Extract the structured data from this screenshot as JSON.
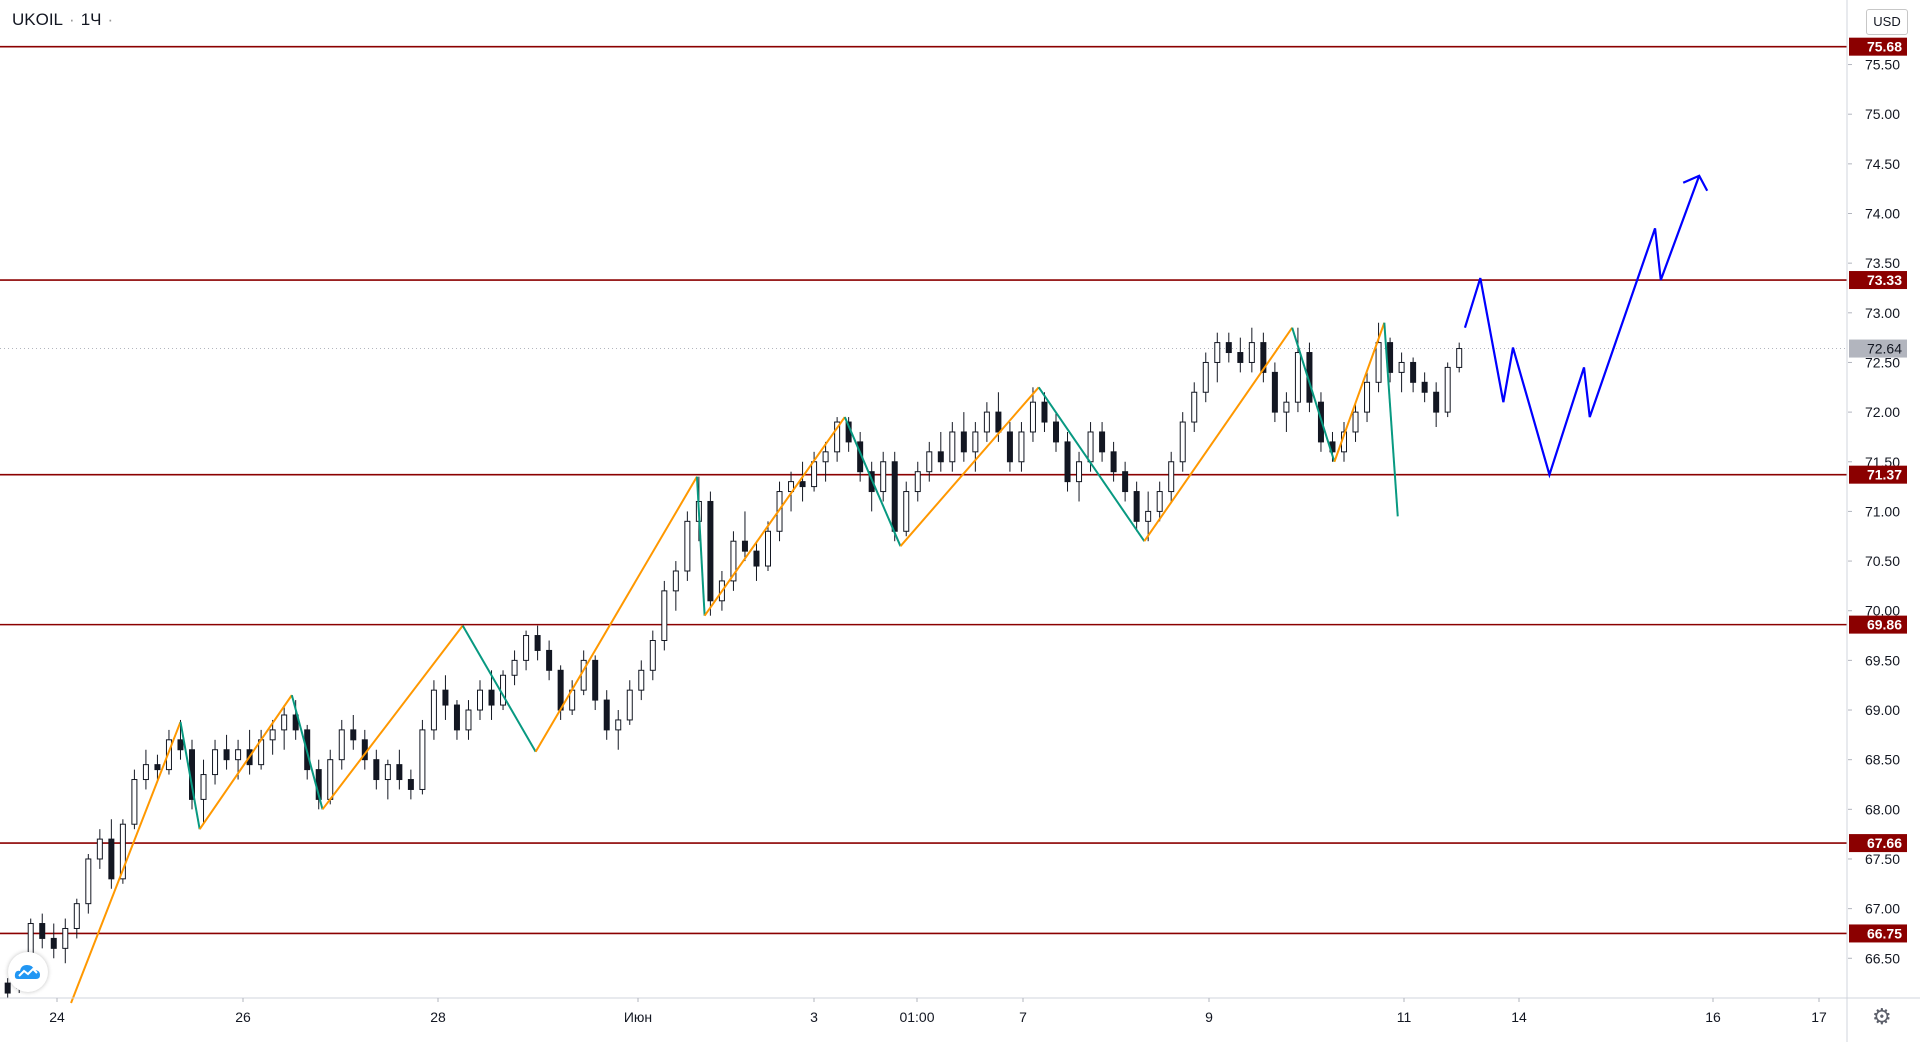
{
  "legend": {
    "symbol": "UKOIL",
    "interval": "1Ч"
  },
  "currency": "USD",
  "colors": {
    "level_line": "#8b0000",
    "level_tag_bg": "#8b0000",
    "zigzag_up": "#ff9800",
    "zigzag_down": "#089981",
    "forecast": "#0000ff",
    "candle": "#131722",
    "current_tag_bg": "#b2b5be"
  },
  "chart_data": {
    "type": "candlestick",
    "y_axis": {
      "range": [
        66.1,
        76.15
      ],
      "ticks": [
        "75.50",
        "75.00",
        "74.50",
        "74.00",
        "73.50",
        "73.00",
        "72.50",
        "72.00",
        "71.50",
        "71.00",
        "70.50",
        "70.00",
        "69.50",
        "69.00",
        "68.50",
        "68.00",
        "67.50",
        "67.00",
        "66.50"
      ]
    },
    "x_axis": {
      "tick_labels": [
        "24",
        "26",
        "28",
        "Июн",
        "3",
        "01:00",
        "7",
        "9",
        "11",
        "14",
        "16",
        "17"
      ]
    },
    "current_price": {
      "value": 72.64,
      "label": "72.64"
    },
    "horizontal_levels": [
      {
        "value": 75.68,
        "label": "75.68"
      },
      {
        "value": 73.33,
        "label": "73.33"
      },
      {
        "value": 71.37,
        "label": "71.37"
      },
      {
        "value": 69.86,
        "label": "69.86"
      },
      {
        "value": 67.66,
        "label": "67.66"
      },
      {
        "value": 66.75,
        "label": "66.75"
      }
    ],
    "zigzag": [
      [
        0.037,
        66.05
      ],
      [
        0.094,
        68.88
      ],
      [
        0.104,
        67.8
      ],
      [
        0.152,
        69.15
      ],
      [
        0.168,
        68.0
      ],
      [
        0.241,
        69.85
      ],
      [
        0.279,
        68.58
      ],
      [
        0.363,
        71.35
      ],
      [
        0.367,
        69.95
      ],
      [
        0.44,
        71.95
      ],
      [
        0.469,
        70.65
      ],
      [
        0.541,
        72.25
      ],
      [
        0.596,
        70.7
      ],
      [
        0.673,
        72.85
      ],
      [
        0.695,
        71.5
      ],
      [
        0.721,
        72.9
      ],
      [
        0.728,
        70.95
      ]
    ],
    "forecast_path": [
      [
        0.763,
        72.85
      ],
      [
        0.771,
        73.35
      ],
      [
        0.783,
        72.1
      ],
      [
        0.788,
        72.65
      ],
      [
        0.807,
        71.37
      ],
      [
        0.825,
        72.45
      ],
      [
        0.828,
        71.95
      ],
      [
        0.862,
        73.85
      ],
      [
        0.865,
        73.33
      ],
      [
        0.885,
        74.38
      ]
    ],
    "candles": [
      [
        0.004,
        66.25,
        66.3,
        66.1,
        66.15
      ],
      [
        0.01,
        66.2,
        66.35,
        66.15,
        66.3
      ],
      [
        0.016,
        66.4,
        66.9,
        66.3,
        66.85
      ],
      [
        0.022,
        66.85,
        66.95,
        66.6,
        66.7
      ],
      [
        0.028,
        66.7,
        66.85,
        66.5,
        66.6
      ],
      [
        0.034,
        66.6,
        66.9,
        66.45,
        66.8
      ],
      [
        0.04,
        66.8,
        67.1,
        66.7,
        67.05
      ],
      [
        0.046,
        67.05,
        67.55,
        66.95,
        67.5
      ],
      [
        0.052,
        67.5,
        67.8,
        67.4,
        67.7
      ],
      [
        0.058,
        67.7,
        67.9,
        67.2,
        67.3
      ],
      [
        0.064,
        67.3,
        67.9,
        67.25,
        67.85
      ],
      [
        0.07,
        67.85,
        68.4,
        67.8,
        68.3
      ],
      [
        0.076,
        68.3,
        68.6,
        68.2,
        68.45
      ],
      [
        0.082,
        68.45,
        68.55,
        68.3,
        68.4
      ],
      [
        0.088,
        68.4,
        68.8,
        68.35,
        68.7
      ],
      [
        0.094,
        68.7,
        68.9,
        68.5,
        68.6
      ],
      [
        0.1,
        68.6,
        68.7,
        68.0,
        68.1
      ],
      [
        0.106,
        68.1,
        68.5,
        67.85,
        68.35
      ],
      [
        0.112,
        68.35,
        68.7,
        68.25,
        68.6
      ],
      [
        0.118,
        68.6,
        68.75,
        68.4,
        68.5
      ],
      [
        0.124,
        68.5,
        68.7,
        68.3,
        68.6
      ],
      [
        0.13,
        68.6,
        68.8,
        68.35,
        68.45
      ],
      [
        0.136,
        68.45,
        68.8,
        68.4,
        68.7
      ],
      [
        0.142,
        68.7,
        68.9,
        68.55,
        68.8
      ],
      [
        0.148,
        68.8,
        69.05,
        68.6,
        68.95
      ],
      [
        0.154,
        68.95,
        69.1,
        68.7,
        68.8
      ],
      [
        0.16,
        68.8,
        68.85,
        68.3,
        68.4
      ],
      [
        0.166,
        68.4,
        68.5,
        68.0,
        68.1
      ],
      [
        0.172,
        68.1,
        68.6,
        68.05,
        68.5
      ],
      [
        0.178,
        68.5,
        68.9,
        68.4,
        68.8
      ],
      [
        0.184,
        68.8,
        68.95,
        68.6,
        68.7
      ],
      [
        0.19,
        68.7,
        68.8,
        68.4,
        68.5
      ],
      [
        0.196,
        68.5,
        68.6,
        68.2,
        68.3
      ],
      [
        0.202,
        68.3,
        68.5,
        68.1,
        68.45
      ],
      [
        0.208,
        68.45,
        68.6,
        68.2,
        68.3
      ],
      [
        0.214,
        68.3,
        68.4,
        68.1,
        68.2
      ],
      [
        0.22,
        68.2,
        68.9,
        68.15,
        68.8
      ],
      [
        0.226,
        68.8,
        69.3,
        68.7,
        69.2
      ],
      [
        0.232,
        69.2,
        69.35,
        68.9,
        69.05
      ],
      [
        0.238,
        69.05,
        69.1,
        68.7,
        68.8
      ],
      [
        0.244,
        68.8,
        69.1,
        68.7,
        69.0
      ],
      [
        0.25,
        69.0,
        69.3,
        68.9,
        69.2
      ],
      [
        0.256,
        69.2,
        69.4,
        68.9,
        69.05
      ],
      [
        0.262,
        69.05,
        69.4,
        69.0,
        69.35
      ],
      [
        0.268,
        69.35,
        69.6,
        69.25,
        69.5
      ],
      [
        0.274,
        69.5,
        69.8,
        69.4,
        69.75
      ],
      [
        0.28,
        69.75,
        69.85,
        69.5,
        69.6
      ],
      [
        0.286,
        69.6,
        69.7,
        69.3,
        69.4
      ],
      [
        0.292,
        69.4,
        69.45,
        68.9,
        69.0
      ],
      [
        0.298,
        69.0,
        69.3,
        68.95,
        69.2
      ],
      [
        0.304,
        69.2,
        69.6,
        69.15,
        69.5
      ],
      [
        0.31,
        69.5,
        69.55,
        69.0,
        69.1
      ],
      [
        0.316,
        69.1,
        69.2,
        68.7,
        68.8
      ],
      [
        0.322,
        68.8,
        69.0,
        68.6,
        68.9
      ],
      [
        0.328,
        68.9,
        69.3,
        68.85,
        69.2
      ],
      [
        0.334,
        69.2,
        69.5,
        69.1,
        69.4
      ],
      [
        0.34,
        69.4,
        69.8,
        69.3,
        69.7
      ],
      [
        0.346,
        69.7,
        70.3,
        69.6,
        70.2
      ],
      [
        0.352,
        70.2,
        70.5,
        70.0,
        70.4
      ],
      [
        0.358,
        70.4,
        71.0,
        70.3,
        70.9
      ],
      [
        0.364,
        70.9,
        71.35,
        70.7,
        71.1
      ],
      [
        0.37,
        71.1,
        71.2,
        69.95,
        70.1
      ],
      [
        0.376,
        70.1,
        70.4,
        70.0,
        70.3
      ],
      [
        0.382,
        70.3,
        70.8,
        70.2,
        70.7
      ],
      [
        0.388,
        70.7,
        71.0,
        70.5,
        70.6
      ],
      [
        0.394,
        70.6,
        70.7,
        70.3,
        70.45
      ],
      [
        0.4,
        70.45,
        70.9,
        70.4,
        70.8
      ],
      [
        0.406,
        70.8,
        71.3,
        70.7,
        71.2
      ],
      [
        0.412,
        71.2,
        71.4,
        71.0,
        71.3
      ],
      [
        0.418,
        71.3,
        71.5,
        71.1,
        71.25
      ],
      [
        0.424,
        71.25,
        71.6,
        71.2,
        71.5
      ],
      [
        0.43,
        71.5,
        71.7,
        71.3,
        71.6
      ],
      [
        0.436,
        71.6,
        71.95,
        71.5,
        71.9
      ],
      [
        0.442,
        71.9,
        71.95,
        71.6,
        71.7
      ],
      [
        0.448,
        71.7,
        71.8,
        71.3,
        71.4
      ],
      [
        0.454,
        71.4,
        71.5,
        71.0,
        71.2
      ],
      [
        0.46,
        71.2,
        71.6,
        71.1,
        71.5
      ],
      [
        0.466,
        71.5,
        71.6,
        70.7,
        70.8
      ],
      [
        0.472,
        70.8,
        71.3,
        70.75,
        71.2
      ],
      [
        0.478,
        71.2,
        71.5,
        71.1,
        71.4
      ],
      [
        0.484,
        71.4,
        71.7,
        71.3,
        71.6
      ],
      [
        0.49,
        71.6,
        71.8,
        71.4,
        71.5
      ],
      [
        0.496,
        71.5,
        71.9,
        71.4,
        71.8
      ],
      [
        0.502,
        71.8,
        72.0,
        71.5,
        71.6
      ],
      [
        0.508,
        71.6,
        71.9,
        71.4,
        71.8
      ],
      [
        0.514,
        71.8,
        72.1,
        71.7,
        72.0
      ],
      [
        0.52,
        72.0,
        72.2,
        71.7,
        71.8
      ],
      [
        0.526,
        71.8,
        71.9,
        71.4,
        71.5
      ],
      [
        0.532,
        71.5,
        71.9,
        71.4,
        71.8
      ],
      [
        0.538,
        71.8,
        72.25,
        71.7,
        72.1
      ],
      [
        0.544,
        72.1,
        72.2,
        71.8,
        71.9
      ],
      [
        0.55,
        71.9,
        72.0,
        71.6,
        71.7
      ],
      [
        0.556,
        71.7,
        71.8,
        71.2,
        71.3
      ],
      [
        0.562,
        71.3,
        71.6,
        71.1,
        71.5
      ],
      [
        0.568,
        71.5,
        71.9,
        71.4,
        71.8
      ],
      [
        0.574,
        71.8,
        71.9,
        71.5,
        71.6
      ],
      [
        0.58,
        71.6,
        71.7,
        71.3,
        71.4
      ],
      [
        0.586,
        71.4,
        71.5,
        71.1,
        71.2
      ],
      [
        0.592,
        71.2,
        71.3,
        70.8,
        70.9
      ],
      [
        0.598,
        70.9,
        71.2,
        70.7,
        71.0
      ],
      [
        0.604,
        71.0,
        71.3,
        70.9,
        71.2
      ],
      [
        0.61,
        71.2,
        71.6,
        71.1,
        71.5
      ],
      [
        0.616,
        71.5,
        72.0,
        71.4,
        71.9
      ],
      [
        0.622,
        71.9,
        72.3,
        71.8,
        72.2
      ],
      [
        0.628,
        72.2,
        72.6,
        72.1,
        72.5
      ],
      [
        0.634,
        72.5,
        72.8,
        72.3,
        72.7
      ],
      [
        0.64,
        72.7,
        72.8,
        72.5,
        72.6
      ],
      [
        0.646,
        72.6,
        72.75,
        72.4,
        72.5
      ],
      [
        0.652,
        72.5,
        72.85,
        72.4,
        72.7
      ],
      [
        0.658,
        72.7,
        72.8,
        72.3,
        72.4
      ],
      [
        0.664,
        72.4,
        72.5,
        71.9,
        72.0
      ],
      [
        0.67,
        72.0,
        72.2,
        71.8,
        72.1
      ],
      [
        0.676,
        72.1,
        72.85,
        72.0,
        72.6
      ],
      [
        0.682,
        72.6,
        72.7,
        72.0,
        72.1
      ],
      [
        0.688,
        72.1,
        72.2,
        71.6,
        71.7
      ],
      [
        0.694,
        71.7,
        71.8,
        71.5,
        71.6
      ],
      [
        0.7,
        71.6,
        71.9,
        71.5,
        71.8
      ],
      [
        0.706,
        71.8,
        72.1,
        71.7,
        72.0
      ],
      [
        0.712,
        72.0,
        72.4,
        71.9,
        72.3
      ],
      [
        0.718,
        72.3,
        72.9,
        72.2,
        72.7
      ],
      [
        0.724,
        72.7,
        72.75,
        72.3,
        72.4
      ],
      [
        0.73,
        72.4,
        72.6,
        72.2,
        72.5
      ],
      [
        0.736,
        72.5,
        72.55,
        72.2,
        72.3
      ],
      [
        0.742,
        72.3,
        72.4,
        72.1,
        72.2
      ],
      [
        0.748,
        72.2,
        72.3,
        71.85,
        72.0
      ],
      [
        0.754,
        72.0,
        72.5,
        71.95,
        72.45
      ],
      [
        0.76,
        72.45,
        72.7,
        72.4,
        72.64
      ]
    ]
  }
}
